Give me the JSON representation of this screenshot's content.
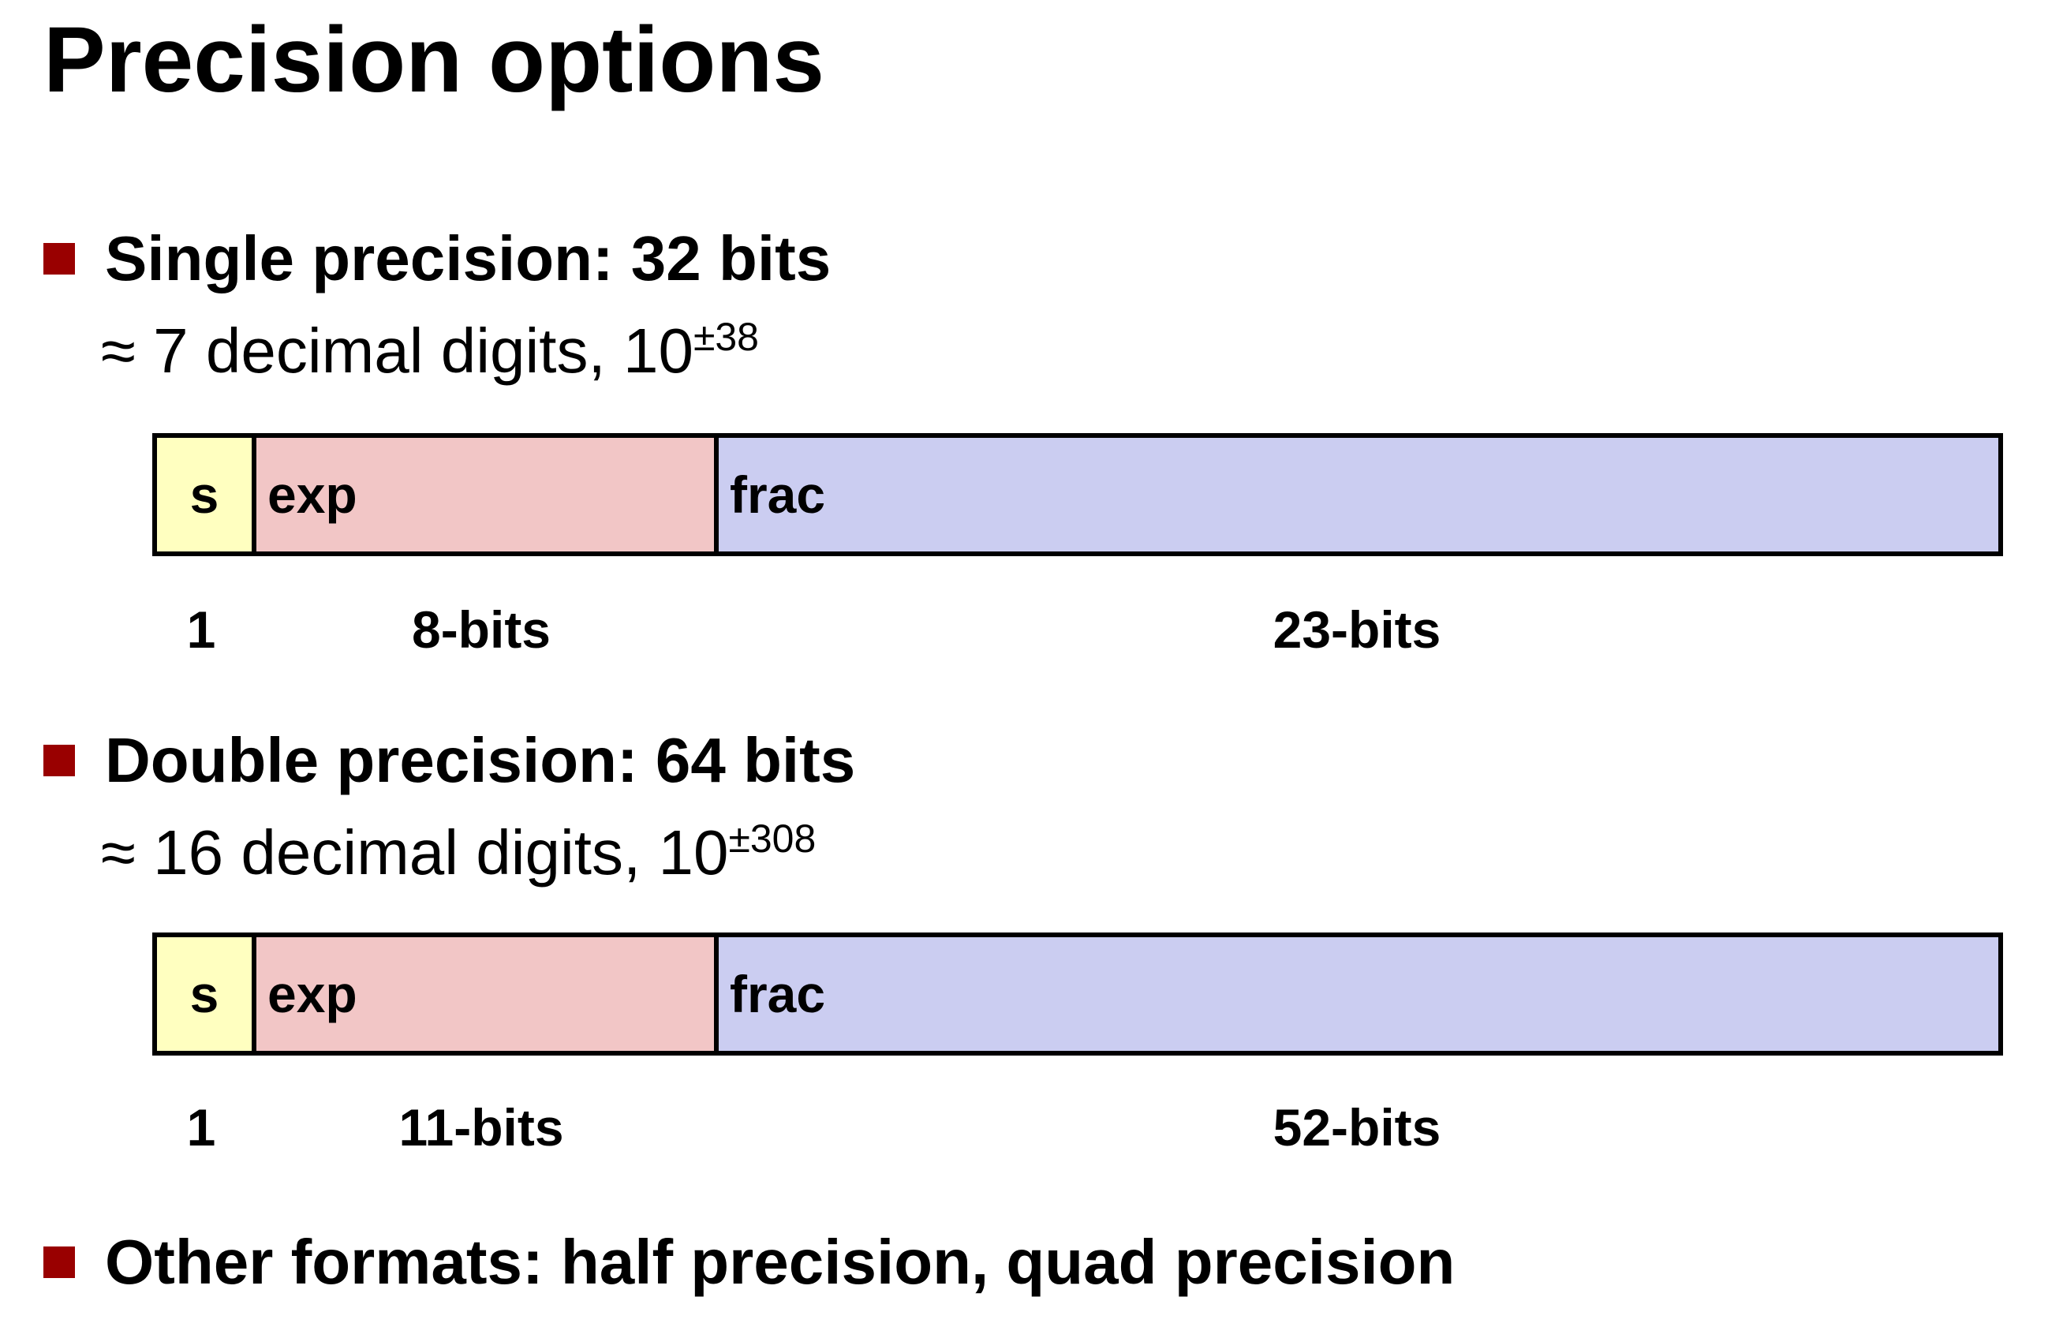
{
  "title": "Precision options",
  "colors": {
    "bullet": "#990000",
    "sign_field": "#ffffc0",
    "exp_field": "#f2c6c6",
    "frac_field": "#cbcdf1",
    "border": "#000000"
  },
  "single": {
    "heading": "Single precision: 32 bits",
    "approx_prefix": "≈ 7 decimal digits, 10",
    "approx_exponent": "±38",
    "fields": {
      "sign": "s",
      "exp": "exp",
      "frac": "frac"
    },
    "widths": {
      "sign": "1",
      "exp": "8-bits",
      "frac": "23-bits"
    }
  },
  "double": {
    "heading": "Double precision: 64 bits",
    "approx_prefix": "≈ 16 decimal digits, 10",
    "approx_exponent": "±308",
    "fields": {
      "sign": "s",
      "exp": "exp",
      "frac": "frac"
    },
    "widths": {
      "sign": "1",
      "exp": "11-bits",
      "frac": "52-bits"
    }
  },
  "other": {
    "heading": "Other formats: half precision, quad precision"
  }
}
